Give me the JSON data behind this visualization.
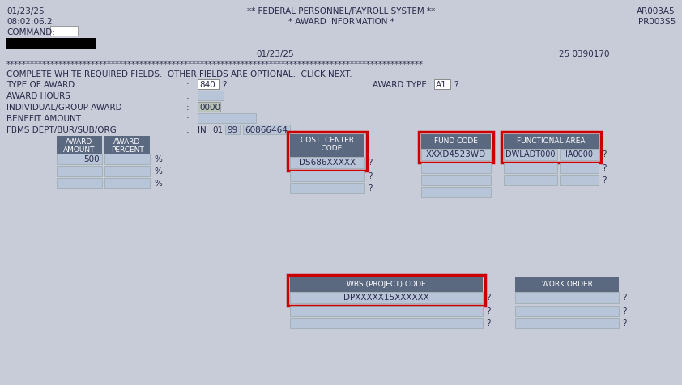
{
  "bg_color": "#c8ccd8",
  "text_color": "#2a2a4a",
  "font_family": "Courier New",
  "header_date_left": "01/23/25",
  "header_time_left": "08:02:06.2",
  "header_command": "COMMAND:",
  "header_title": "** FEDERAL PERSONNEL/PAYROLL SYSTEM **",
  "header_subtitle": "* AWARD INFORMATION *",
  "header_id1": "AR003A5",
  "header_id2": "PR003S5",
  "header_date_center": "01/23/25",
  "header_num": "25 0390170",
  "instruction": "COMPLETE WHITE REQUIRED FIELDS.  OTHER FIELDS ARE OPTIONAL.  CLICK NEXT.",
  "highlight_color": "#cc0000",
  "header_box_color": "#5a6880",
  "header_text_color": "#ffffff",
  "input_box_color": "#b8c4d8",
  "white_box_color": "#ffffff",
  "gray_box_color": "#b8c4b8",
  "black_color": "#000000",
  "cost_center_header": "COST  CENTER\n    CODE",
  "cost_center_value": "DS686XXXXX",
  "fund_code_header": "FUND CODE",
  "fund_code_value": "XXXD4523WD",
  "func_area_header": "FUNCTIONAL AREA",
  "func_area_v1": "DWLADT000",
  "func_area_v2": "IA0000",
  "wbs_header": "WBS (PROJECT) CODE",
  "wbs_value": "DPXXXXX15XXXXXX",
  "work_order_header": "WORK ORDER"
}
